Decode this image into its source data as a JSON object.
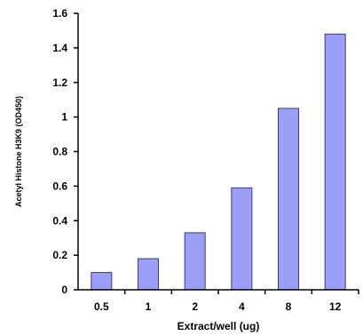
{
  "chart_data": {
    "type": "bar",
    "categories": [
      "0.5",
      "1",
      "2",
      "4",
      "8",
      "12"
    ],
    "values": [
      0.1,
      0.18,
      0.33,
      0.59,
      1.05,
      1.48
    ],
    "title": "",
    "xlabel": "Extract/well (ug)",
    "ylabel": "Acetyl Histone H3K9 (OD450)",
    "ylim": [
      0,
      1.6
    ],
    "yticks": [
      "0",
      "0.2",
      "0.4",
      "0.6",
      "0.8",
      "1",
      "1.2",
      "1.4",
      "1.6"
    ],
    "grid": false,
    "legend": "none",
    "bar_color": "#9b9ff7",
    "bar_edge_color": "#3a3a8a"
  }
}
